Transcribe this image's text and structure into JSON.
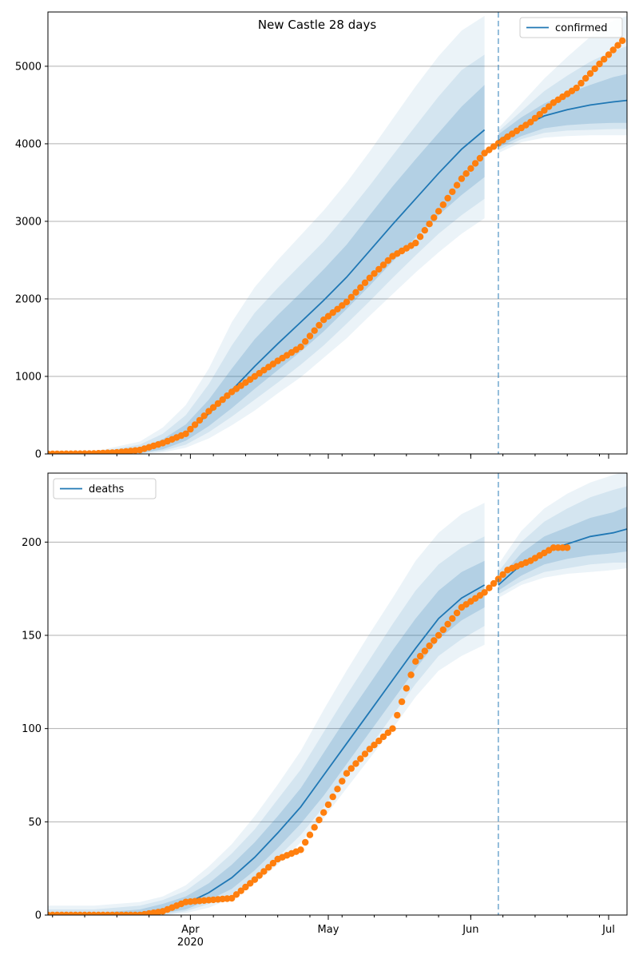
{
  "figure": {
    "title": "New Castle 28 days",
    "forecast_start": "2020-06-07",
    "colors": {
      "model_line": "#1f77b4",
      "observed_points": "#ff7f0e",
      "band": "#1f77b4",
      "forecast_marker": "#1f77b4",
      "grid": "#b0b0b0"
    }
  },
  "chart_data": [
    {
      "type": "line",
      "name": "confirmed panel",
      "legend": "confirmed",
      "legend_position": "top-right",
      "x_range": [
        "2020-03-01",
        "2020-07-05"
      ],
      "ylim": [
        0,
        5700
      ],
      "yticks": [
        0,
        1000,
        2000,
        3000,
        4000,
        5000
      ],
      "grid": "horizontal",
      "model": {
        "x": [
          "2020-03-01",
          "2020-03-11",
          "2020-03-21",
          "2020-03-26",
          "2020-03-31",
          "2020-04-05",
          "2020-04-10",
          "2020-04-15",
          "2020-04-20",
          "2020-04-25",
          "2020-04-30",
          "2020-05-05",
          "2020-05-10",
          "2020-05-15",
          "2020-05-20",
          "2020-05-25",
          "2020-05-30",
          "2020-06-04",
          "2020-06-07",
          "2020-06-12",
          "2020-06-17",
          "2020-06-22",
          "2020-06-27",
          "2020-07-02",
          "2020-07-05"
        ],
        "y": [
          0,
          5,
          40,
          120,
          270,
          520,
          820,
          1130,
          1420,
          1700,
          1980,
          2280,
          2620,
          2960,
          3290,
          3620,
          3930,
          4180,
          4040,
          4220,
          4360,
          4440,
          4500,
          4540,
          4560
        ],
        "bands": [
          {
            "lower": [
              0,
              0,
              10,
              60,
              170,
              360,
              590,
              840,
              1080,
              1320,
              1580,
              1870,
              2170,
              2480,
              2790,
              3080,
              3340,
              3570,
              3950,
              4100,
              4200,
              4240,
              4260,
              4270,
              4270
            ],
            "upper": [
              0,
              12,
              80,
              190,
              380,
              700,
              1100,
              1480,
              1790,
              2080,
              2380,
              2700,
              3080,
              3450,
              3800,
              4140,
              4480,
              4760,
              4120,
              4340,
              4520,
              4650,
              4760,
              4860,
              4900
            ]
          },
          {
            "lower": [
              0,
              0,
              5,
              40,
              120,
              280,
              480,
              700,
              920,
              1150,
              1400,
              1680,
              1970,
              2270,
              2560,
              2840,
              3080,
              3290,
              3920,
              4060,
              4140,
              4170,
              4180,
              4190,
              4190
            ],
            "upper": [
              0,
              20,
              120,
              260,
              500,
              900,
              1400,
              1820,
              2140,
              2440,
              2740,
              3090,
              3460,
              3850,
              4230,
              4610,
              4950,
              5150,
              4160,
              4420,
              4680,
              4880,
              5060,
              5200,
              5260
            ]
          },
          {
            "lower": [
              0,
              0,
              0,
              20,
              80,
              200,
              370,
              560,
              780,
              990,
              1240,
              1490,
              1780,
              2060,
              2340,
              2600,
              2840,
              3040,
              3880,
              4020,
              4080,
              4100,
              4110,
              4110,
              4110
            ],
            "upper": [
              0,
              30,
              160,
              340,
              630,
              1100,
              1700,
              2150,
              2500,
              2820,
              3140,
              3500,
              3900,
              4320,
              4740,
              5130,
              5460,
              5650,
              4200,
              4520,
              4840,
              5120,
              5380,
              5590,
              5650
            ]
          }
        ]
      },
      "observed": {
        "x": [
          "2020-03-01",
          "2020-03-06",
          "2020-03-11",
          "2020-03-16",
          "2020-03-21",
          "2020-03-26",
          "2020-03-31",
          "2020-04-05",
          "2020-04-10",
          "2020-04-15",
          "2020-04-20",
          "2020-04-25",
          "2020-04-30",
          "2020-05-05",
          "2020-05-10",
          "2020-05-15",
          "2020-05-20",
          "2020-05-25",
          "2020-05-30",
          "2020-06-04",
          "2020-06-09",
          "2020-06-14",
          "2020-06-19",
          "2020-06-24",
          "2020-06-29",
          "2020-07-04"
        ],
        "y": [
          0,
          2,
          5,
          20,
          50,
          140,
          260,
          550,
          800,
          1000,
          1200,
          1380,
          1730,
          1960,
          2270,
          2550,
          2720,
          3130,
          3550,
          3880,
          4090,
          4280,
          4530,
          4720,
          5030,
          5330
        ]
      }
    },
    {
      "type": "line",
      "name": "deaths panel",
      "legend": "deaths",
      "legend_position": "top-left",
      "x_range": [
        "2020-03-01",
        "2020-07-05"
      ],
      "ylim": [
        0,
        237
      ],
      "yticks": [
        0,
        50,
        100,
        150,
        200
      ],
      "xtick_labels": [
        "Apr\n2020",
        "May",
        "Jun",
        "Jul"
      ],
      "grid": "horizontal",
      "model": {
        "x": [
          "2020-03-01",
          "2020-03-11",
          "2020-03-21",
          "2020-03-26",
          "2020-03-31",
          "2020-04-05",
          "2020-04-10",
          "2020-04-15",
          "2020-04-20",
          "2020-04-25",
          "2020-04-30",
          "2020-05-05",
          "2020-05-10",
          "2020-05-15",
          "2020-05-20",
          "2020-05-25",
          "2020-05-30",
          "2020-06-04",
          "2020-06-07",
          "2020-06-12",
          "2020-06-17",
          "2020-06-22",
          "2020-06-27",
          "2020-07-02",
          "2020-07-05"
        ],
        "y": [
          0,
          0,
          1,
          3,
          6,
          12,
          20,
          31,
          44,
          58,
          75,
          92,
          109,
          126,
          143,
          159,
          170,
          177,
          177,
          188,
          195,
          199,
          203,
          205,
          207
        ],
        "bands": [
          {
            "lower": [
              0,
              0,
              0,
              1,
              3,
              8,
              14,
              24,
              36,
              49,
              64,
              81,
              98,
              115,
              132,
              148,
              158,
              165,
              174,
              182,
              188,
              191,
              193,
              194,
              195
            ],
            "upper": [
              1,
              1,
              3,
              6,
              10,
              17,
              27,
              39,
              53,
              68,
              87,
              106,
              124,
              142,
              159,
              174,
              184,
              190,
              180,
              194,
              203,
              208,
              213,
              216,
              219
            ]
          },
          {
            "lower": [
              0,
              0,
              0,
              0,
              2,
              6,
              11,
              20,
              31,
              43,
              58,
              74,
              90,
              107,
              124,
              139,
              148,
              155,
              172,
              179,
              184,
              186,
              188,
              189,
              189
            ],
            "upper": [
              3,
              3,
              5,
              8,
              13,
              22,
              33,
              46,
              62,
              78,
              98,
              118,
              137,
              156,
              174,
              188,
              197,
              203,
              184,
              200,
              211,
              218,
              224,
              228,
              230
            ]
          },
          {
            "lower": [
              0,
              0,
              0,
              0,
              1,
              4,
              9,
              17,
              27,
              39,
              52,
              68,
              84,
              100,
              117,
              131,
              139,
              145,
              170,
              177,
              181,
              183,
              184,
              185,
              186
            ],
            "upper": [
              5,
              5,
              7,
              10,
              16,
              26,
              38,
              53,
              70,
              88,
              110,
              131,
              151,
              170,
              190,
              205,
              215,
              221,
              188,
              206,
              218,
              226,
              232,
              236,
              238
            ]
          }
        ]
      },
      "observed": {
        "x": [
          "2020-03-01",
          "2020-03-11",
          "2020-03-21",
          "2020-03-26",
          "2020-03-31",
          "2020-04-05",
          "2020-04-10",
          "2020-04-15",
          "2020-04-20",
          "2020-04-25",
          "2020-04-30",
          "2020-05-05",
          "2020-05-10",
          "2020-05-15",
          "2020-05-20",
          "2020-05-25",
          "2020-05-30",
          "2020-06-04",
          "2020-06-09",
          "2020-06-14",
          "2020-06-19",
          "2020-06-22"
        ],
        "y": [
          0,
          0,
          0,
          2,
          7,
          8,
          9,
          19,
          30,
          35,
          55,
          76,
          89,
          100,
          136,
          150,
          165,
          173,
          185,
          190,
          197,
          197
        ]
      }
    }
  ]
}
